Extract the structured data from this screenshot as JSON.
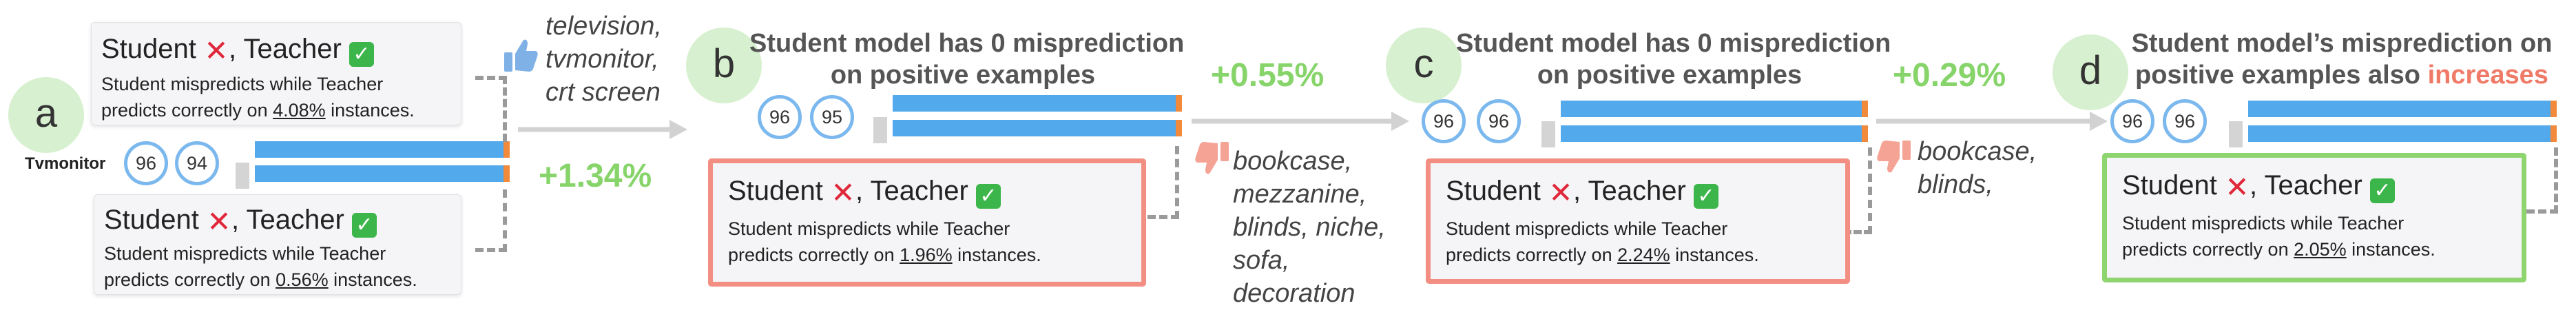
{
  "diagram": {
    "panel_a": {
      "letter": "a",
      "class_label": "Tvmonitor",
      "scores": [
        "96",
        "94"
      ],
      "box_top": {
        "heading": "Student",
        "heading_mid": ", Teacher",
        "line1": "Student mispredicts while Teacher",
        "line2_pre": "predicts correctly on ",
        "line2_val": "4.08%",
        "line2_post": " instances."
      },
      "box_bottom": {
        "heading": "Student",
        "heading_mid": ", Teacher",
        "line1": "Student mispredicts while Teacher",
        "line2_pre": "predicts correctly on ",
        "line2_val": "0.56%",
        "line2_post": " instances."
      }
    },
    "transition_ab": {
      "words": [
        "television,",
        "tvmonitor,",
        "crt screen"
      ],
      "gain": "+1.34%"
    },
    "panel_b": {
      "letter": "b",
      "title_line1": "Student model has 0 misprediction",
      "title_line2": "on positive examples",
      "scores": [
        "96",
        "95"
      ],
      "box": {
        "heading": "Student",
        "heading_mid": ", Teacher",
        "line1": "Student mispredicts while Teacher",
        "line2_pre": "predicts correctly on ",
        "line2_val": "1.96%",
        "line2_post": " instances."
      }
    },
    "transition_bc": {
      "words": [
        "bookcase,",
        "mezzanine,",
        "blinds, niche,",
        "sofa,",
        "decoration"
      ],
      "gain": "+0.55%"
    },
    "panel_c": {
      "letter": "c",
      "title_line1": "Student model has 0 misprediction",
      "title_line2": "on positive examples",
      "scores": [
        "96",
        "96"
      ],
      "box": {
        "heading": "Student",
        "heading_mid": ", Teacher",
        "line1": "Student mispredicts while Teacher",
        "line2_pre": "predicts correctly on ",
        "line2_val": "2.24%",
        "line2_post": " instances."
      }
    },
    "transition_cd": {
      "words": [
        "bookcase,",
        "blinds,"
      ],
      "gain": "+0.29%"
    },
    "panel_d": {
      "letter": "d",
      "title_line1": "Student model’s misprediction on",
      "title_line2_pre": "positive examples also ",
      "title_line2_hl": "increases",
      "scores": [
        "96",
        "96"
      ],
      "box": {
        "heading": "Student",
        "heading_mid": ", Teacher",
        "line1": "Student mispredicts while Teacher",
        "line2_pre": "predicts correctly on ",
        "line2_val": "2.05%",
        "line2_post": " instances."
      }
    },
    "marks": {
      "cross": "✕",
      "check": "✓"
    },
    "colors": {
      "bar": "#52a9ec",
      "bar_tip": "#f28a3c",
      "circle": "#d7f0cf",
      "gain": "#86d46a",
      "red_border": "#f28f82",
      "green_border": "#8ed46f",
      "highlight": "#f07a68"
    }
  }
}
